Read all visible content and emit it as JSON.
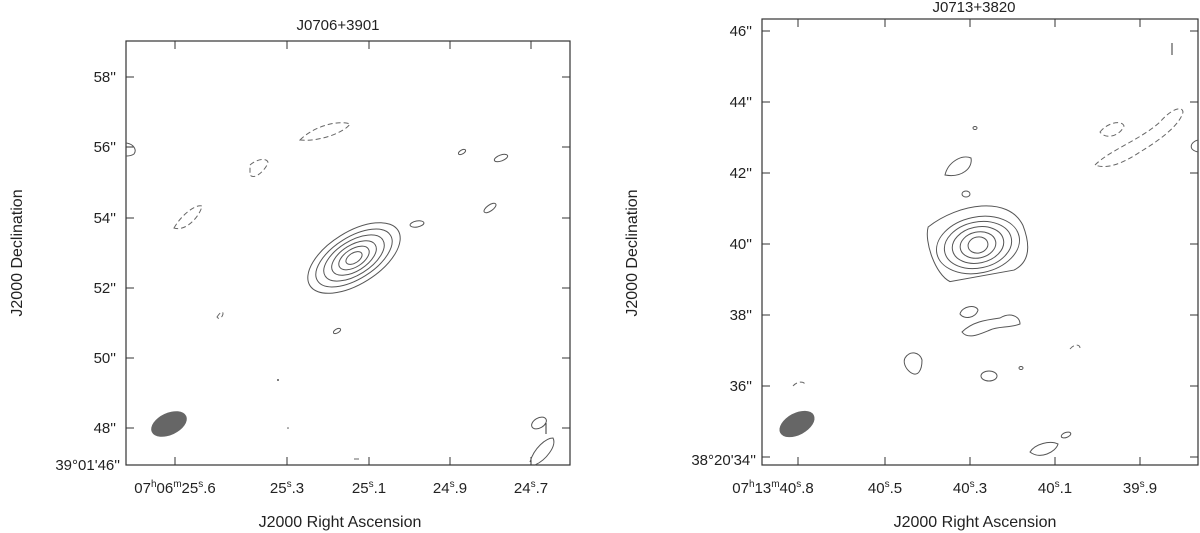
{
  "chart_data": [
    {
      "type": "contour",
      "title": "J0706+3901",
      "xlabel": "J2000 Right Ascension",
      "ylabel": "J2000 Declination",
      "x_ticks": [
        {
          "pre": "07",
          "s1": "h",
          "mid": "06",
          "s2": "m",
          "main": "25",
          "s3": "s",
          "post": ".6"
        },
        {
          "pre": "",
          "s1": "",
          "mid": "",
          "s2": "",
          "main": "25",
          "s3": "s",
          "post": ".3"
        },
        {
          "pre": "",
          "s1": "",
          "mid": "",
          "s2": "",
          "main": "25",
          "s3": "s",
          "post": ".1"
        },
        {
          "pre": "",
          "s1": "",
          "mid": "",
          "s2": "",
          "main": "24",
          "s3": "s",
          "post": ".9"
        },
        {
          "pre": "",
          "s1": "",
          "mid": "",
          "s2": "",
          "main": "24",
          "s3": "s",
          "post": ".7"
        }
      ],
      "y_ticks": [
        "58''",
        "56''",
        "54''",
        "52''",
        "50''",
        "48''",
        "39°01'46''"
      ],
      "source": {
        "x": 25.1,
        "y": 51.8
      },
      "contour_levels": 6
    },
    {
      "type": "contour",
      "title": "J0713+3820",
      "xlabel": "J2000 Right Ascension",
      "ylabel": "J2000 Declination",
      "x_ticks": [
        {
          "pre": "07",
          "s1": "h",
          "mid": "13",
          "s2": "m",
          "main": "40",
          "s3": "s",
          "post": ".8"
        },
        {
          "pre": "",
          "s1": "",
          "mid": "",
          "s2": "",
          "main": "40",
          "s3": "s",
          "post": ".5"
        },
        {
          "pre": "",
          "s1": "",
          "mid": "",
          "s2": "",
          "main": "40",
          "s3": "s",
          "post": ".3"
        },
        {
          "pre": "",
          "s1": "",
          "mid": "",
          "s2": "",
          "main": "40",
          "s3": "s",
          "post": ".1"
        },
        {
          "pre": "",
          "s1": "",
          "mid": "",
          "s2": "",
          "main": "39",
          "s3": "s",
          "post": ".9"
        }
      ],
      "y_ticks": [
        "46''",
        "44''",
        "42''",
        "40''",
        "38''",
        "36''",
        "38°20'34''"
      ],
      "source": {
        "x": 40.3,
        "y": 39.9
      },
      "contour_levels": 6
    }
  ]
}
